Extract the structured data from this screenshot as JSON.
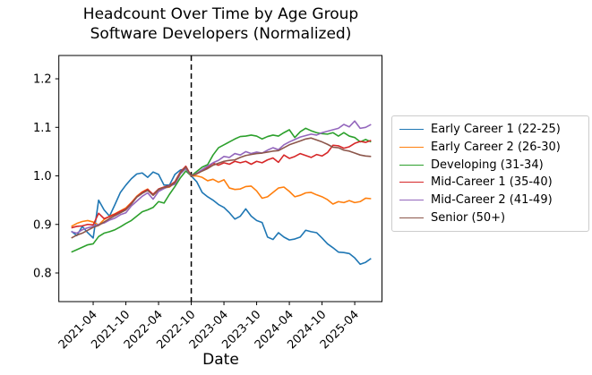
{
  "chart_data": {
    "type": "line",
    "title": "Headcount Over Time by Age Group",
    "subtitle": "Software Developers (Normalized)",
    "xlabel": "Date",
    "ylabel": "",
    "grid": false,
    "legend_position": "right-outside",
    "ylim": [
      0.74,
      1.25
    ],
    "y_ticks": [
      "0.8",
      "0.9",
      "1.0",
      "1.1",
      "1.2"
    ],
    "x_tick_labels": [
      "2021-04",
      "2021-10",
      "2022-04",
      "2022-10",
      "2023-04",
      "2023-10",
      "2024-04",
      "2024-10",
      "2025-04"
    ],
    "vline": {
      "x": "2022-10",
      "style": "dashed",
      "color": "#000000"
    },
    "x": [
      "2020-12",
      "2021-01",
      "2021-02",
      "2021-03",
      "2021-04",
      "2021-05",
      "2021-06",
      "2021-07",
      "2021-08",
      "2021-09",
      "2021-10",
      "2021-11",
      "2021-12",
      "2022-01",
      "2022-02",
      "2022-03",
      "2022-04",
      "2022-05",
      "2022-06",
      "2022-07",
      "2022-08",
      "2022-09",
      "2022-10",
      "2022-11",
      "2022-12",
      "2023-01",
      "2023-02",
      "2023-03",
      "2023-04",
      "2023-05",
      "2023-06",
      "2023-07",
      "2023-08",
      "2023-09",
      "2023-10",
      "2023-11",
      "2023-12",
      "2024-01",
      "2024-02",
      "2024-03",
      "2024-04",
      "2024-05",
      "2024-06",
      "2024-07",
      "2024-08",
      "2024-09",
      "2024-10",
      "2024-11",
      "2024-12",
      "2025-01",
      "2025-02",
      "2025-03",
      "2025-04",
      "2025-05",
      "2025-06",
      "2025-07"
    ],
    "series": [
      {
        "name": "Early Career 1 (22-25)",
        "color": "#1f77b4",
        "values": [
          0.886,
          0.877,
          0.896,
          0.883,
          0.872,
          0.95,
          0.93,
          0.917,
          0.941,
          0.966,
          0.981,
          0.994,
          1.004,
          1.006,
          0.997,
          1.008,
          1.003,
          0.981,
          0.981,
          1.003,
          1.012,
          1.015,
          1.0,
          0.988,
          0.966,
          0.957,
          0.95,
          0.941,
          0.935,
          0.924,
          0.911,
          0.917,
          0.932,
          0.917,
          0.908,
          0.904,
          0.874,
          0.869,
          0.883,
          0.874,
          0.868,
          0.87,
          0.874,
          0.888,
          0.885,
          0.883,
          0.872,
          0.86,
          0.852,
          0.843,
          0.842,
          0.84,
          0.831,
          0.818,
          0.822,
          0.83
        ]
      },
      {
        "name": "Early Career 2 (26-30)",
        "color": "#ff7f0e",
        "values": [
          0.896,
          0.902,
          0.906,
          0.908,
          0.905,
          0.899,
          0.91,
          0.917,
          0.922,
          0.928,
          0.934,
          0.945,
          0.958,
          0.967,
          0.973,
          0.96,
          0.97,
          0.975,
          0.977,
          0.985,
          1.006,
          1.016,
          1.0,
          1.0,
          0.997,
          0.99,
          0.993,
          0.987,
          0.992,
          0.975,
          0.972,
          0.973,
          0.978,
          0.979,
          0.969,
          0.954,
          0.957,
          0.966,
          0.975,
          0.977,
          0.968,
          0.957,
          0.96,
          0.965,
          0.966,
          0.961,
          0.957,
          0.951,
          0.942,
          0.947,
          0.945,
          0.949,
          0.945,
          0.947,
          0.954,
          0.953
        ]
      },
      {
        "name": "Developing (31-34)",
        "color": "#2ca02c",
        "values": [
          0.843,
          0.848,
          0.853,
          0.858,
          0.86,
          0.875,
          0.882,
          0.885,
          0.889,
          0.895,
          0.902,
          0.908,
          0.917,
          0.926,
          0.93,
          0.935,
          0.947,
          0.944,
          0.962,
          0.978,
          0.996,
          1.01,
          1.0,
          1.009,
          1.018,
          1.023,
          1.043,
          1.058,
          1.064,
          1.07,
          1.076,
          1.081,
          1.082,
          1.084,
          1.082,
          1.076,
          1.081,
          1.084,
          1.082,
          1.089,
          1.095,
          1.079,
          1.091,
          1.098,
          1.093,
          1.089,
          1.087,
          1.086,
          1.089,
          1.082,
          1.089,
          1.082,
          1.079,
          1.07,
          1.075,
          1.07
        ]
      },
      {
        "name": "Mid-Career 1 (35-40)",
        "color": "#d62728",
        "values": [
          0.893,
          0.896,
          0.897,
          0.9,
          0.899,
          0.923,
          0.912,
          0.916,
          0.921,
          0.927,
          0.932,
          0.944,
          0.957,
          0.966,
          0.972,
          0.962,
          0.973,
          0.977,
          0.98,
          0.988,
          1.008,
          1.02,
          1.0,
          1.005,
          1.012,
          1.018,
          1.026,
          1.022,
          1.027,
          1.024,
          1.03,
          1.027,
          1.03,
          1.024,
          1.03,
          1.027,
          1.033,
          1.037,
          1.028,
          1.043,
          1.036,
          1.04,
          1.046,
          1.042,
          1.038,
          1.044,
          1.041,
          1.048,
          1.063,
          1.062,
          1.057,
          1.06,
          1.067,
          1.071,
          1.069,
          1.073
        ]
      },
      {
        "name": "Mid-Career 2 (41-49)",
        "color": "#9467bd",
        "values": [
          0.885,
          0.882,
          0.889,
          0.893,
          0.896,
          0.9,
          0.903,
          0.909,
          0.913,
          0.92,
          0.924,
          0.938,
          0.948,
          0.958,
          0.965,
          0.952,
          0.968,
          0.974,
          0.979,
          0.983,
          1.004,
          1.015,
          1.0,
          1.005,
          1.013,
          1.02,
          1.027,
          1.032,
          1.04,
          1.038,
          1.046,
          1.043,
          1.05,
          1.046,
          1.049,
          1.047,
          1.053,
          1.058,
          1.054,
          1.064,
          1.07,
          1.075,
          1.08,
          1.083,
          1.086,
          1.084,
          1.089,
          1.092,
          1.095,
          1.098,
          1.106,
          1.101,
          1.113,
          1.098,
          1.1,
          1.106
        ]
      },
      {
        "name": "Senior (50+)",
        "color": "#8c564b",
        "values": [
          0.872,
          0.878,
          0.882,
          0.888,
          0.894,
          0.898,
          0.905,
          0.912,
          0.918,
          0.924,
          0.93,
          0.942,
          0.956,
          0.964,
          0.97,
          0.96,
          0.972,
          0.976,
          0.978,
          0.986,
          1.006,
          1.018,
          1.0,
          1.004,
          1.01,
          1.015,
          1.022,
          1.026,
          1.03,
          1.032,
          1.033,
          1.038,
          1.042,
          1.044,
          1.046,
          1.047,
          1.049,
          1.051,
          1.052,
          1.058,
          1.064,
          1.068,
          1.072,
          1.076,
          1.078,
          1.074,
          1.07,
          1.065,
          1.059,
          1.058,
          1.053,
          1.051,
          1.047,
          1.043,
          1.041,
          1.04
        ]
      }
    ]
  }
}
